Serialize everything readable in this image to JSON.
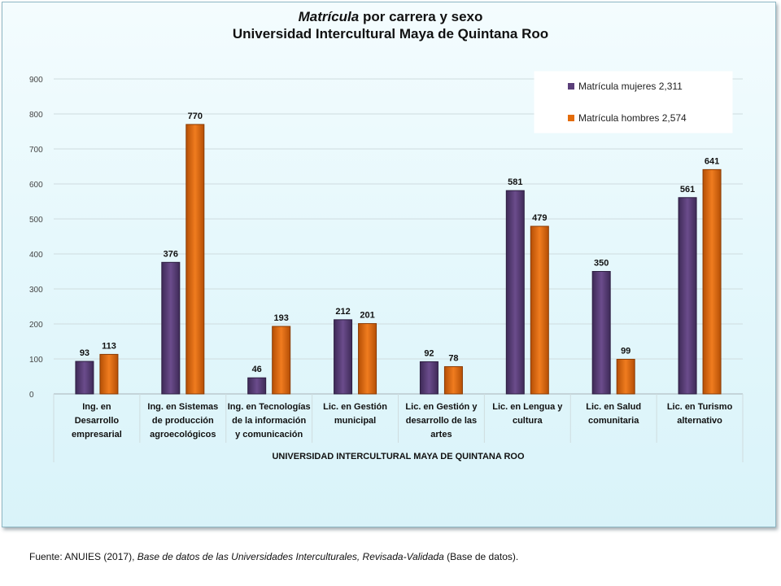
{
  "chart_data": {
    "type": "bar",
    "title_italic": "Matrícula",
    "title_rest": " por carrera y sexo",
    "subtitle": "Universidad Intercultural Maya de Quintana Roo",
    "xlabel": "UNIVERSIDAD INTERCULTURAL MAYA DE QUINTANA ROO",
    "ylabel": "",
    "ylim": [
      0,
      900
    ],
    "yticks": [
      0,
      100,
      200,
      300,
      400,
      500,
      600,
      700,
      800,
      900
    ],
    "grid": true,
    "legend_position": "top-right",
    "categories": [
      [
        "Ing. en",
        "Desarrollo",
        "empresarial"
      ],
      [
        "Ing. en Sistemas",
        "de producción",
        "agroecológicos"
      ],
      [
        "Ing. en Tecnologías",
        "de la información",
        "y comunicación"
      ],
      [
        "Lic. en Gestión",
        "municipal"
      ],
      [
        "Lic. en Gestión y",
        "desarrollo de las",
        "artes"
      ],
      [
        "Lic. en Lengua y",
        "cultura"
      ],
      [
        "Lic. en Salud",
        "comunitaria"
      ],
      [
        "Lic. en Turismo",
        "alternativo"
      ]
    ],
    "series": [
      {
        "name": "Matrícula mujeres  2,311",
        "color": "#5b3f7a",
        "values": [
          93,
          376,
          46,
          212,
          92,
          581,
          350,
          561
        ]
      },
      {
        "name": "Matrícula hombres  2,574",
        "color": "#e46c0a",
        "values": [
          113,
          770,
          193,
          201,
          78,
          479,
          99,
          641
        ]
      }
    ]
  },
  "source": {
    "prefix": "Fuente: ANUIES (2017), ",
    "italic": "Base de datos de las Universidades  Interculturales, Revisada-Validada",
    "suffix": "  (Base de datos)."
  }
}
